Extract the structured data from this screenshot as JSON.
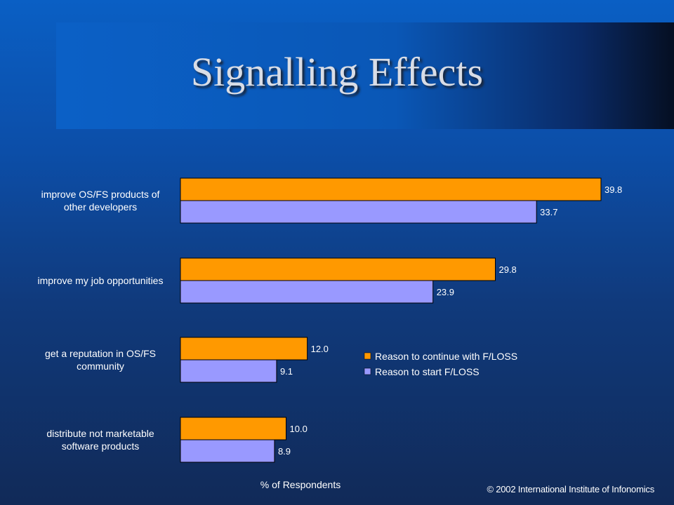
{
  "slide": {
    "title": "Signalling Effects",
    "copyright": "© 2002 International Institute of Infonomics"
  },
  "colors": {
    "continue": "#ff9900",
    "start": "#9999ff"
  },
  "chart_data": {
    "type": "bar",
    "orientation": "horizontal",
    "xlabel": "% of Respondents",
    "ylabel": "",
    "xlim": [
      0,
      40
    ],
    "grid": false,
    "legend_position": "right-middle",
    "categories": [
      [
        "improve OS/FS products of",
        "other developers"
      ],
      [
        "improve my job opportunities"
      ],
      [
        "get a reputation in OS/FS",
        "community"
      ],
      [
        "distribute not marketable",
        "software products"
      ]
    ],
    "series": [
      {
        "name": "Reason to continue with F/LOSS",
        "values": [
          39.8,
          29.8,
          12.0,
          10.0
        ],
        "labels": [
          "39.8",
          "29.8",
          "12.0",
          "10.0"
        ]
      },
      {
        "name": "Reason to start F/LOSS",
        "values": [
          33.7,
          23.9,
          9.1,
          8.9
        ],
        "labels": [
          "33.7",
          "23.9",
          "9.1",
          "8.9"
        ]
      }
    ]
  }
}
